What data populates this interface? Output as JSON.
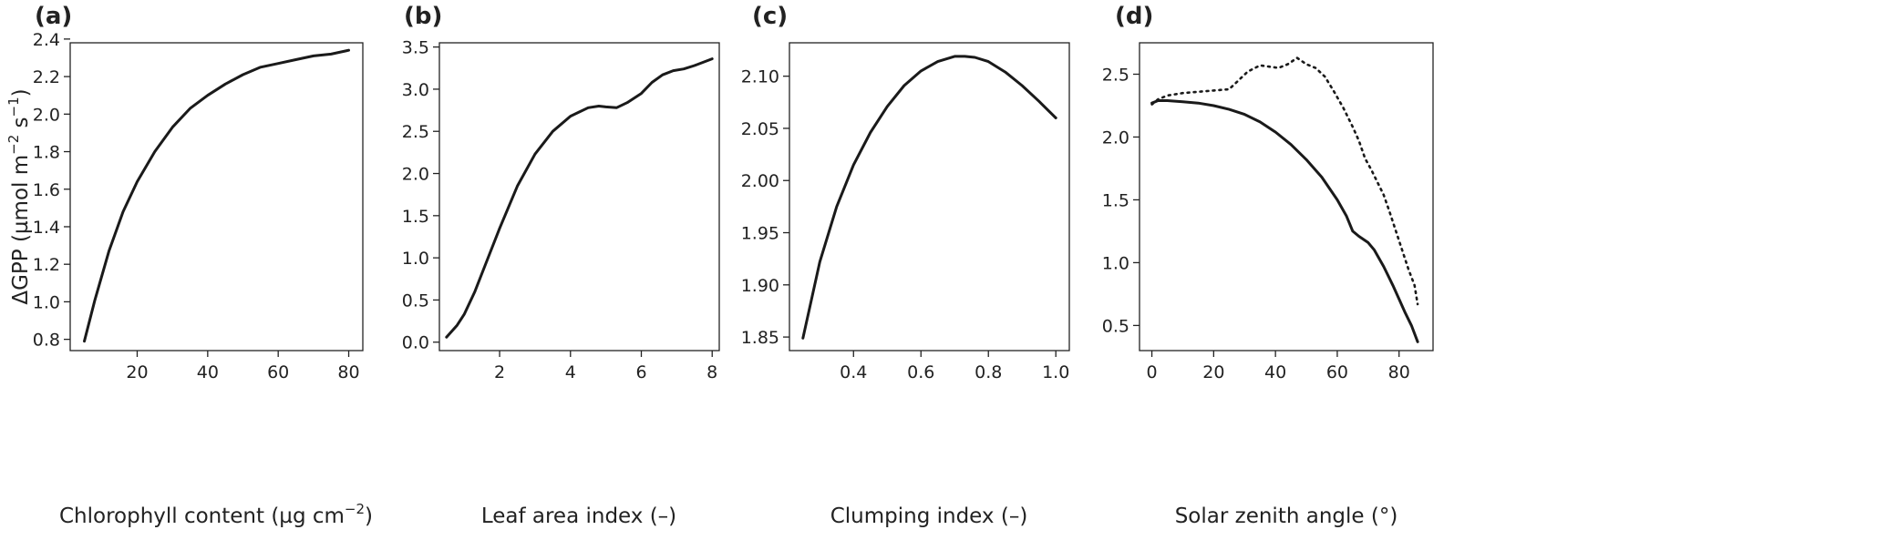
{
  "chart_data": [
    {
      "type": "line",
      "panel_label": "(a)",
      "xlabel": "Chlorophyll content (µg cm",
      "xlabel_sup": "−2",
      "xlabel_end": ")",
      "ylabel": "ΔGPP (µmol m",
      "ylabel_sup1": "−2",
      "ylabel_mid": " s",
      "ylabel_sup2": "−1",
      "ylabel_end": ")",
      "xlim": [
        1,
        84
      ],
      "ylim": [
        0.74,
        2.38
      ],
      "xticks": [
        20,
        40,
        60,
        80
      ],
      "xtick_labels": [
        "20",
        "40",
        "60",
        "80"
      ],
      "yticks": [
        0.8,
        1.0,
        1.2,
        1.4,
        1.6,
        1.8,
        2.0,
        2.2,
        2.4
      ],
      "ytick_labels": [
        "0.8",
        "1.0",
        "1.2",
        "1.4",
        "1.6",
        "1.8",
        "2.0",
        "2.2",
        "2.4"
      ],
      "series": [
        {
          "style": "solid",
          "x": [
            5,
            8,
            12,
            16,
            20,
            25,
            30,
            35,
            40,
            45,
            50,
            55,
            60,
            65,
            70,
            75,
            80
          ],
          "y": [
            0.79,
            1.01,
            1.27,
            1.48,
            1.64,
            1.8,
            1.93,
            2.03,
            2.1,
            2.16,
            2.21,
            2.25,
            2.27,
            2.29,
            2.31,
            2.32,
            2.34
          ]
        }
      ]
    },
    {
      "type": "line",
      "panel_label": "(b)",
      "xlabel": "Leaf area index (–)",
      "xlim": [
        0.3,
        8.2
      ],
      "ylim": [
        -0.1,
        3.55
      ],
      "xticks": [
        2,
        4,
        6,
        8
      ],
      "xtick_labels": [
        "2",
        "4",
        "6",
        "8"
      ],
      "yticks": [
        0.0,
        0.5,
        1.0,
        1.5,
        2.0,
        2.5,
        3.0,
        3.5
      ],
      "ytick_labels": [
        "0.0",
        "0.5",
        "1.0",
        "1.5",
        "2.0",
        "2.5",
        "3.0",
        "3.5"
      ],
      "series": [
        {
          "style": "solid",
          "x": [
            0.5,
            0.8,
            1.0,
            1.3,
            1.6,
            2.0,
            2.5,
            3.0,
            3.5,
            4.0,
            4.5,
            4.8,
            5.0,
            5.3,
            5.6,
            6.0,
            6.3,
            6.6,
            6.9,
            7.2,
            7.5,
            8.0
          ],
          "y": [
            0.06,
            0.2,
            0.33,
            0.6,
            0.92,
            1.35,
            1.85,
            2.23,
            2.5,
            2.68,
            2.78,
            2.8,
            2.79,
            2.78,
            2.84,
            2.95,
            3.08,
            3.17,
            3.22,
            3.24,
            3.28,
            3.36
          ]
        }
      ]
    },
    {
      "type": "line",
      "panel_label": "(c)",
      "xlabel": "Clumping index (–)",
      "xlim": [
        0.21,
        1.04
      ],
      "ylim": [
        1.837,
        2.132
      ],
      "xticks": [
        0.4,
        0.6,
        0.8,
        1.0
      ],
      "xtick_labels": [
        "0.4",
        "0.6",
        "0.8",
        "1.0"
      ],
      "yticks": [
        1.85,
        1.9,
        1.95,
        2.0,
        2.05,
        2.1
      ],
      "ytick_labels": [
        "1.85",
        "1.90",
        "1.95",
        "2.00",
        "2.05",
        "2.10"
      ],
      "series": [
        {
          "style": "solid",
          "x": [
            0.25,
            0.3,
            0.35,
            0.4,
            0.45,
            0.5,
            0.55,
            0.6,
            0.65,
            0.7,
            0.73,
            0.76,
            0.8,
            0.85,
            0.9,
            0.95,
            1.0
          ],
          "y": [
            1.849,
            1.922,
            1.975,
            2.015,
            2.046,
            2.071,
            2.091,
            2.105,
            2.114,
            2.119,
            2.119,
            2.118,
            2.114,
            2.104,
            2.091,
            2.076,
            2.06
          ]
        }
      ]
    },
    {
      "type": "line",
      "panel_label": "(d)",
      "xlabel": "Solar zenith angle (°)",
      "xlim": [
        -4,
        91
      ],
      "ylim": [
        0.3,
        2.75
      ],
      "xticks": [
        0,
        20,
        40,
        60,
        80
      ],
      "xtick_labels": [
        "0",
        "20",
        "40",
        "60",
        "80"
      ],
      "yticks": [
        0.5,
        1.0,
        1.5,
        2.0,
        2.5
      ],
      "ytick_labels": [
        "0.5",
        "1.0",
        "1.5",
        "2.0",
        "2.5"
      ],
      "series": [
        {
          "style": "solid",
          "x": [
            0,
            2,
            5,
            10,
            15,
            20,
            25,
            30,
            35,
            40,
            45,
            50,
            55,
            60,
            63,
            65,
            67,
            70,
            72,
            75,
            78,
            80,
            82,
            84,
            86
          ],
          "y": [
            2.27,
            2.29,
            2.29,
            2.28,
            2.27,
            2.25,
            2.22,
            2.18,
            2.12,
            2.04,
            1.94,
            1.82,
            1.68,
            1.5,
            1.37,
            1.25,
            1.21,
            1.16,
            1.1,
            0.97,
            0.82,
            0.71,
            0.6,
            0.5,
            0.37
          ]
        },
        {
          "style": "dotted",
          "x": [
            0,
            2,
            5,
            10,
            15,
            20,
            25,
            28,
            31,
            35,
            38,
            41,
            44,
            47,
            50,
            53,
            56,
            59,
            62,
            65,
            67,
            69,
            71,
            73,
            75,
            77,
            79,
            81,
            83,
            85,
            86
          ],
          "y": [
            2.26,
            2.3,
            2.33,
            2.35,
            2.36,
            2.37,
            2.38,
            2.45,
            2.52,
            2.57,
            2.56,
            2.55,
            2.58,
            2.63,
            2.58,
            2.55,
            2.48,
            2.36,
            2.23,
            2.08,
            1.97,
            1.83,
            1.74,
            1.64,
            1.54,
            1.4,
            1.25,
            1.1,
            0.95,
            0.82,
            0.67
          ]
        }
      ]
    }
  ]
}
